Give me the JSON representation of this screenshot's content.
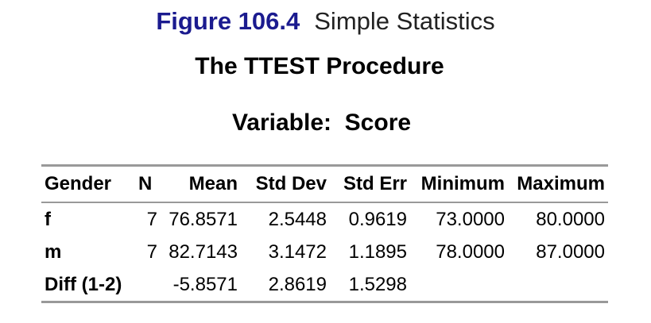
{
  "figure": {
    "number": "Figure 106.4",
    "caption": "Simple Statistics"
  },
  "procedure_title": "The TTEST Procedure",
  "variable_title": "Variable:  Score",
  "colors": {
    "figure_number": "#1b1b8f",
    "rule": "#999999"
  },
  "table": {
    "headers": [
      "Gender",
      "N",
      "Mean",
      "Std Dev",
      "Std Err",
      "Minimum",
      "Maximum"
    ],
    "rows": [
      [
        "f",
        "7",
        "76.8571",
        "2.5448",
        "0.9619",
        "73.0000",
        "80.0000"
      ],
      [
        "m",
        "7",
        "82.7143",
        "3.1472",
        "1.1895",
        "78.0000",
        "87.0000"
      ],
      [
        "Diff (1-2)",
        "",
        "-5.8571",
        "2.8619",
        "1.5298",
        "",
        ""
      ]
    ]
  }
}
